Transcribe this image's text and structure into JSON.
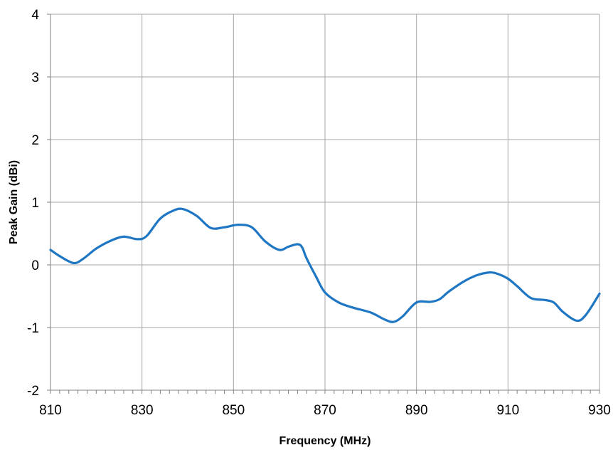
{
  "chart_data": {
    "type": "line",
    "title": "",
    "xlabel": "Frequency (MHz)",
    "ylabel": "Peak Gain (dBi)",
    "xlim": [
      810,
      930
    ],
    "ylim": [
      -2,
      4
    ],
    "x_ticks": [
      810,
      830,
      850,
      870,
      890,
      910,
      930
    ],
    "y_ticks": [
      -2,
      -1,
      0,
      1,
      2,
      3,
      4
    ],
    "grid": true,
    "legend": "none",
    "series": [
      {
        "color": "#1f77c4",
        "x": [
          810,
          812,
          815,
          817,
          820,
          823,
          826,
          829,
          831,
          834,
          837,
          839,
          842,
          845,
          848,
          851,
          854,
          857,
          860,
          862,
          864,
          865,
          866,
          868,
          870,
          873,
          876,
          880,
          883,
          885,
          887,
          890,
          893,
          895,
          897,
          900,
          903,
          906,
          908,
          910,
          912,
          915,
          918,
          920,
          922,
          925,
          927,
          930
        ],
        "y": [
          0.24,
          0.14,
          0.03,
          0.09,
          0.26,
          0.38,
          0.45,
          0.41,
          0.46,
          0.74,
          0.87,
          0.89,
          0.78,
          0.59,
          0.6,
          0.64,
          0.6,
          0.37,
          0.24,
          0.29,
          0.33,
          0.28,
          0.1,
          -0.18,
          -0.44,
          -0.6,
          -0.68,
          -0.76,
          -0.87,
          -0.91,
          -0.82,
          -0.6,
          -0.59,
          -0.55,
          -0.43,
          -0.28,
          -0.17,
          -0.12,
          -0.15,
          -0.22,
          -0.34,
          -0.53,
          -0.56,
          -0.6,
          -0.75,
          -0.89,
          -0.8,
          -0.46
        ]
      }
    ]
  }
}
